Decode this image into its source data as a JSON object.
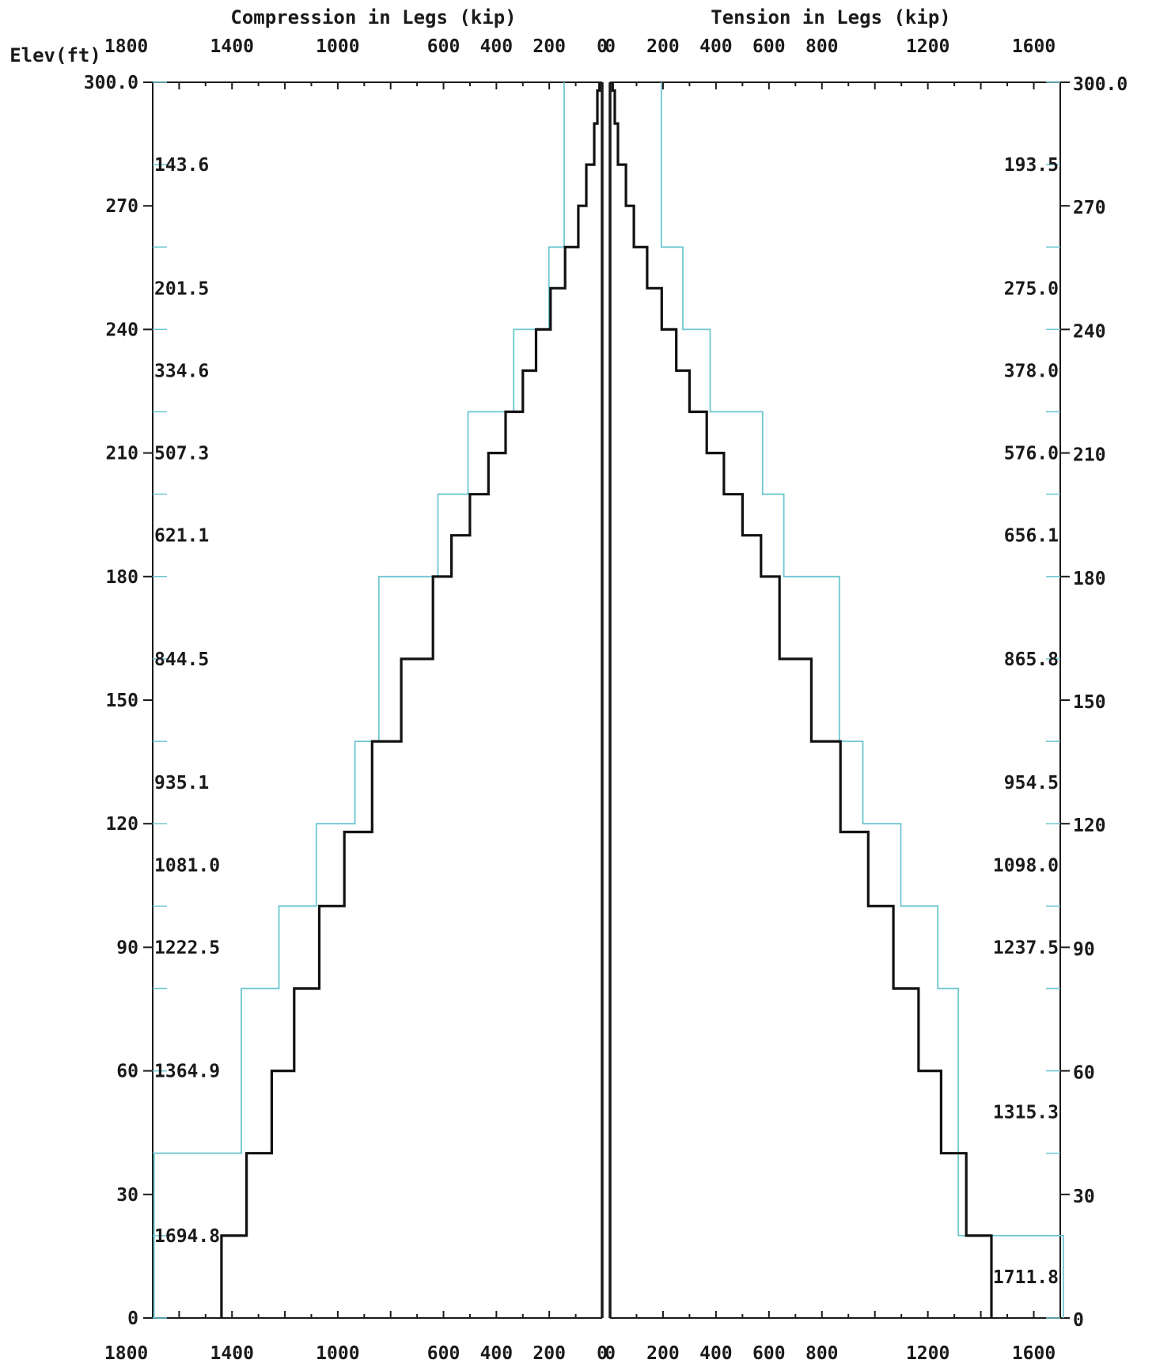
{
  "chart_data": {
    "type": "line",
    "axes_labels": {
      "left_title": "Compression in Legs (kip)",
      "right_title": "Tension in Legs (kip)",
      "elevation_label": "Elev(ft)"
    },
    "compression_ticks": [
      "1800",
      "1400",
      "1000",
      "600",
      "400",
      "200",
      "0"
    ],
    "tension_ticks": [
      "0",
      "200",
      "400",
      "600",
      "800",
      "1200",
      "1600"
    ],
    "elevation_ticks_left": [
      "300.0",
      "270",
      "240",
      "210",
      "180",
      "150",
      "120",
      "90",
      "60",
      "30",
      "0"
    ],
    "elevation_ticks_right": [
      "300.0",
      "270",
      "240",
      "210",
      "180",
      "150",
      "120",
      "90",
      "60",
      "30",
      "0"
    ],
    "ylim": [
      0,
      300
    ],
    "compression_xlim": [
      0,
      1700
    ],
    "tension_xlim": [
      0,
      1700
    ],
    "compression_capacity_labels": [
      {
        "elev": 280,
        "text": "143.6"
      },
      {
        "elev": 250,
        "text": "201.5"
      },
      {
        "elev": 230,
        "text": "334.6"
      },
      {
        "elev": 210,
        "text": "507.3"
      },
      {
        "elev": 190,
        "text": "621.1"
      },
      {
        "elev": 160,
        "text": "844.5"
      },
      {
        "elev": 130,
        "text": "935.1"
      },
      {
        "elev": 110,
        "text": "1081.0"
      },
      {
        "elev": 90,
        "text": "1222.5"
      },
      {
        "elev": 60,
        "text": "1364.9"
      },
      {
        "elev": 20,
        "text": "1694.8"
      }
    ],
    "tension_capacity_labels": [
      {
        "elev": 280,
        "text": "193.5"
      },
      {
        "elev": 250,
        "text": "275.0"
      },
      {
        "elev": 230,
        "text": "378.0"
      },
      {
        "elev": 210,
        "text": "576.0"
      },
      {
        "elev": 190,
        "text": "656.1"
      },
      {
        "elev": 160,
        "text": "865.8"
      },
      {
        "elev": 130,
        "text": "954.5"
      },
      {
        "elev": 110,
        "text": "1098.0"
      },
      {
        "elev": 90,
        "text": "1237.5"
      },
      {
        "elev": 50,
        "text": "1315.3"
      },
      {
        "elev": 10,
        "text": "1711.8"
      }
    ],
    "series": [
      {
        "role": "compression_capacity",
        "color": "#6ec7d1",
        "steps": [
          {
            "from": 260,
            "to": 300,
            "value": 143.6
          },
          {
            "from": 240,
            "to": 260,
            "value": 201.5
          },
          {
            "from": 220,
            "to": 240,
            "value": 334.6
          },
          {
            "from": 200,
            "to": 220,
            "value": 507.3
          },
          {
            "from": 180,
            "to": 200,
            "value": 621.1
          },
          {
            "from": 140,
            "to": 180,
            "value": 844.5
          },
          {
            "from": 120,
            "to": 140,
            "value": 935.1
          },
          {
            "from": 100,
            "to": 120,
            "value": 1081.0
          },
          {
            "from": 80,
            "to": 100,
            "value": 1222.5
          },
          {
            "from": 40,
            "to": 80,
            "value": 1364.9
          },
          {
            "from": 0,
            "to": 40,
            "value": 1694.8
          }
        ]
      },
      {
        "role": "compression_demand",
        "color": "#111111",
        "steps": [
          {
            "from": 298,
            "to": 300,
            "value": 10
          },
          {
            "from": 290,
            "to": 298,
            "value": 18
          },
          {
            "from": 280,
            "to": 290,
            "value": 30
          },
          {
            "from": 270,
            "to": 280,
            "value": 60
          },
          {
            "from": 260,
            "to": 270,
            "value": 90
          },
          {
            "from": 250,
            "to": 260,
            "value": 140
          },
          {
            "from": 240,
            "to": 250,
            "value": 195
          },
          {
            "from": 230,
            "to": 240,
            "value": 250
          },
          {
            "from": 220,
            "to": 230,
            "value": 300
          },
          {
            "from": 210,
            "to": 220,
            "value": 365
          },
          {
            "from": 200,
            "to": 210,
            "value": 430
          },
          {
            "from": 190,
            "to": 200,
            "value": 500
          },
          {
            "from": 180,
            "to": 190,
            "value": 570
          },
          {
            "from": 160,
            "to": 180,
            "value": 640
          },
          {
            "from": 140,
            "to": 160,
            "value": 760
          },
          {
            "from": 118,
            "to": 140,
            "value": 870
          },
          {
            "from": 100,
            "to": 118,
            "value": 975
          },
          {
            "from": 80,
            "to": 100,
            "value": 1070
          },
          {
            "from": 60,
            "to": 80,
            "value": 1165
          },
          {
            "from": 40,
            "to": 60,
            "value": 1250
          },
          {
            "from": 20,
            "to": 40,
            "value": 1345
          },
          {
            "from": 0,
            "to": 20,
            "value": 1440
          }
        ]
      },
      {
        "role": "tension_capacity",
        "color": "#6ec7d1",
        "steps": [
          {
            "from": 260,
            "to": 300,
            "value": 193.5
          },
          {
            "from": 240,
            "to": 260,
            "value": 275.0
          },
          {
            "from": 220,
            "to": 240,
            "value": 378.0
          },
          {
            "from": 200,
            "to": 220,
            "value": 576.0
          },
          {
            "from": 180,
            "to": 200,
            "value": 656.1
          },
          {
            "from": 140,
            "to": 180,
            "value": 865.8
          },
          {
            "from": 120,
            "to": 140,
            "value": 954.5
          },
          {
            "from": 100,
            "to": 120,
            "value": 1098.0
          },
          {
            "from": 80,
            "to": 100,
            "value": 1237.5
          },
          {
            "from": 20,
            "to": 80,
            "value": 1315.3
          },
          {
            "from": 0,
            "to": 20,
            "value": 1711.8
          }
        ]
      },
      {
        "role": "tension_demand",
        "color": "#111111",
        "steps": [
          {
            "from": 298,
            "to": 300,
            "value": 10
          },
          {
            "from": 290,
            "to": 298,
            "value": 18
          },
          {
            "from": 280,
            "to": 290,
            "value": 30
          },
          {
            "from": 270,
            "to": 280,
            "value": 60
          },
          {
            "from": 260,
            "to": 270,
            "value": 90
          },
          {
            "from": 250,
            "to": 260,
            "value": 140
          },
          {
            "from": 240,
            "to": 250,
            "value": 195
          },
          {
            "from": 230,
            "to": 240,
            "value": 250
          },
          {
            "from": 220,
            "to": 230,
            "value": 300
          },
          {
            "from": 210,
            "to": 220,
            "value": 365
          },
          {
            "from": 200,
            "to": 210,
            "value": 430
          },
          {
            "from": 190,
            "to": 200,
            "value": 500
          },
          {
            "from": 180,
            "to": 190,
            "value": 570
          },
          {
            "from": 160,
            "to": 180,
            "value": 640
          },
          {
            "from": 140,
            "to": 160,
            "value": 760
          },
          {
            "from": 118,
            "to": 140,
            "value": 870
          },
          {
            "from": 100,
            "to": 118,
            "value": 975
          },
          {
            "from": 80,
            "to": 100,
            "value": 1070
          },
          {
            "from": 60,
            "to": 80,
            "value": 1165
          },
          {
            "from": 40,
            "to": 60,
            "value": 1250
          },
          {
            "from": 20,
            "to": 40,
            "value": 1345
          },
          {
            "from": 0,
            "to": 20,
            "value": 1440
          }
        ]
      }
    ]
  }
}
